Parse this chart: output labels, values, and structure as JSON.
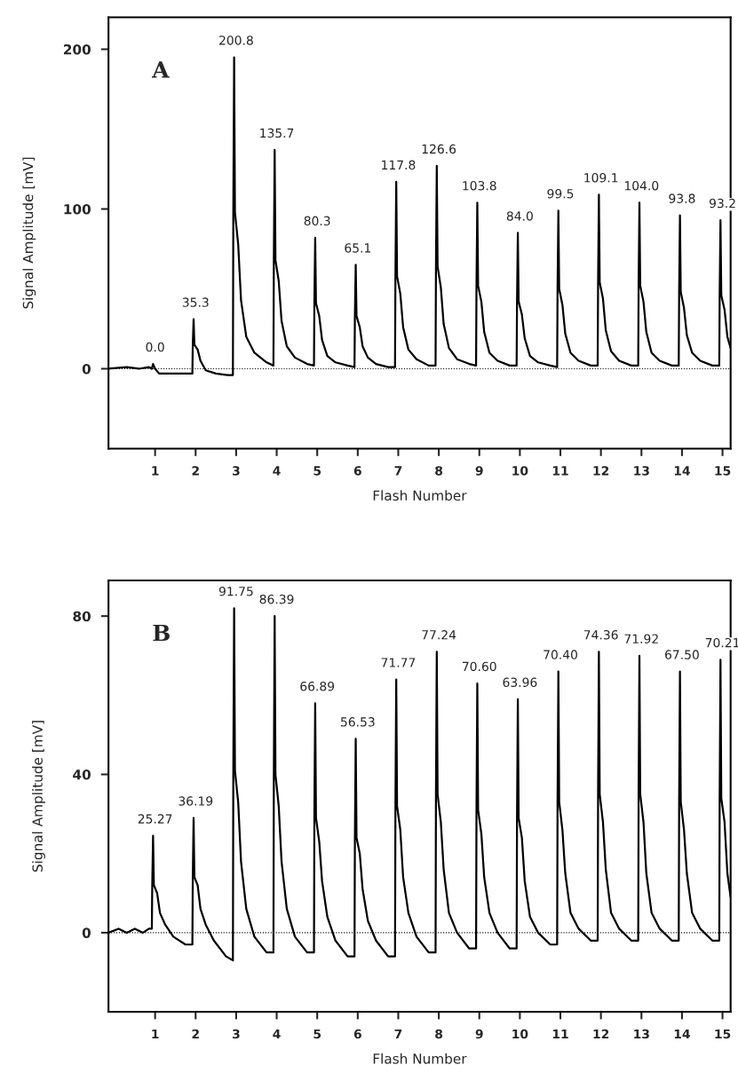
{
  "chart_data": [
    {
      "type": "line",
      "xlabel": "Flash Number",
      "ylabel": "Signal Amplitude [mV]",
      "xlim": [
        -0.15,
        15.2
      ],
      "xticks": [
        1,
        2,
        3,
        4,
        5,
        6,
        7,
        8,
        9,
        10,
        11,
        12,
        13,
        14,
        15
      ],
      "ylim": [
        -50,
        220
      ],
      "yticks": [
        0,
        100,
        200
      ],
      "grid": false,
      "marker": "none",
      "line_style": "solid",
      "ref_lines": [
        {
          "axis": "y",
          "value": 0,
          "line_style": "dotted",
          "color": "#000000"
        }
      ],
      "series": [
        {
          "color": "#000000",
          "x": [
            -0.15,
            0.3,
            0.6,
            0.85,
            0.92,
            0.95,
            1.0,
            1.1,
            1.5,
            1.92,
            1.93,
            1.95,
            1.97,
            2.05,
            2.12,
            2.25,
            2.5,
            2.8,
            2.92,
            2.93,
            2.95,
            2.97,
            3.05,
            3.12,
            3.25,
            3.45,
            3.75,
            3.92,
            3.93,
            3.95,
            3.97,
            4.05,
            4.12,
            4.25,
            4.45,
            4.75,
            4.92,
            4.93,
            4.95,
            4.97,
            5.05,
            5.12,
            5.25,
            5.45,
            5.75,
            5.92,
            5.93,
            5.95,
            5.97,
            6.05,
            6.12,
            6.25,
            6.45,
            6.75,
            6.92,
            6.93,
            6.95,
            6.97,
            7.05,
            7.12,
            7.25,
            7.45,
            7.75,
            7.92,
            7.93,
            7.95,
            7.97,
            8.05,
            8.12,
            8.25,
            8.45,
            8.75,
            8.92,
            8.93,
            8.95,
            8.97,
            9.05,
            9.12,
            9.25,
            9.45,
            9.75,
            9.92,
            9.93,
            9.95,
            9.97,
            10.05,
            10.12,
            10.25,
            10.45,
            10.75,
            10.92,
            10.93,
            10.95,
            10.97,
            11.05,
            11.12,
            11.25,
            11.45,
            11.75,
            11.92,
            11.93,
            11.95,
            11.97,
            12.05,
            12.12,
            12.25,
            12.45,
            12.75,
            12.92,
            12.93,
            12.95,
            12.97,
            13.05,
            13.12,
            13.25,
            13.45,
            13.75,
            13.92,
            13.93,
            13.95,
            13.97,
            14.05,
            14.12,
            14.25,
            14.45,
            14.75,
            14.92,
            14.93,
            14.95,
            14.97,
            15.05,
            15.12,
            15.2
          ],
          "values": [
            0,
            1,
            0,
            1,
            0,
            3,
            0,
            -3,
            -3,
            -3,
            15,
            31,
            15,
            12,
            5,
            -1,
            -3,
            -4,
            -4,
            98,
            195,
            98,
            78,
            43,
            20,
            10,
            4,
            2,
            68,
            137,
            68,
            55,
            30,
            14,
            7,
            3,
            2,
            41,
            82,
            41,
            33,
            18,
            8,
            4,
            2,
            1,
            33,
            65,
            33,
            26,
            14,
            7,
            3,
            1,
            1,
            58,
            117,
            58,
            47,
            26,
            12,
            6,
            2,
            2,
            64,
            127,
            64,
            51,
            28,
            13,
            6,
            3,
            2,
            52,
            104,
            52,
            42,
            23,
            10,
            5,
            2,
            2,
            42,
            85,
            42,
            34,
            19,
            8,
            4,
            2,
            1,
            50,
            99,
            50,
            40,
            22,
            10,
            5,
            2,
            2,
            54,
            109,
            54,
            44,
            24,
            11,
            5,
            2,
            2,
            52,
            104,
            52,
            42,
            23,
            10,
            5,
            2,
            2,
            48,
            96,
            48,
            38,
            21,
            10,
            5,
            2,
            2,
            46,
            93,
            46,
            37,
            20,
            13
          ]
        }
      ],
      "annotations": [
        "A",
        {
          "text": "0.0",
          "x": 1,
          "y": 3
        },
        {
          "text": "35.3",
          "x": 2,
          "y": 31
        },
        {
          "text": "200.8",
          "x": 3,
          "y": 195
        },
        {
          "text": "135.7",
          "x": 4,
          "y": 137
        },
        {
          "text": "80.3",
          "x": 5,
          "y": 82
        },
        {
          "text": "65.1",
          "x": 6,
          "y": 65
        },
        {
          "text": "117.8",
          "x": 7,
          "y": 117
        },
        {
          "text": "126.6",
          "x": 8,
          "y": 127
        },
        {
          "text": "103.8",
          "x": 9,
          "y": 104
        },
        {
          "text": "84.0",
          "x": 10,
          "y": 85
        },
        {
          "text": "99.5",
          "x": 11,
          "y": 99
        },
        {
          "text": "109.1",
          "x": 12,
          "y": 109
        },
        {
          "text": "104.0",
          "x": 13,
          "y": 104
        },
        {
          "text": "93.8",
          "x": 14,
          "y": 96
        },
        {
          "text": "93.2",
          "x": 15,
          "y": 93
        }
      ]
    },
    {
      "type": "line",
      "xlabel": "Flash Number",
      "ylabel": "Signal Amplitude [mV]",
      "xlim": [
        -0.15,
        15.2
      ],
      "xticks": [
        1,
        2,
        3,
        4,
        5,
        6,
        7,
        8,
        9,
        10,
        11,
        12,
        13,
        14,
        15
      ],
      "ylim": [
        -20,
        89
      ],
      "yticks": [
        0,
        40,
        80
      ],
      "grid": false,
      "marker": "none",
      "line_style": "solid",
      "ref_lines": [
        {
          "axis": "y",
          "value": 0,
          "line_style": "dotted",
          "color": "#000000"
        }
      ],
      "series": [
        {
          "color": "#000000",
          "x": [
            -0.15,
            0.1,
            0.3,
            0.5,
            0.7,
            0.85,
            0.92,
            0.93,
            0.95,
            0.97,
            1.05,
            1.12,
            1.25,
            1.45,
            1.75,
            1.92,
            1.93,
            1.95,
            1.97,
            2.05,
            2.12,
            2.25,
            2.45,
            2.75,
            2.92,
            2.93,
            2.95,
            2.97,
            3.05,
            3.12,
            3.25,
            3.45,
            3.75,
            3.92,
            3.93,
            3.95,
            3.97,
            4.05,
            4.12,
            4.25,
            4.45,
            4.75,
            4.92,
            4.93,
            4.95,
            4.97,
            5.05,
            5.12,
            5.25,
            5.45,
            5.75,
            5.92,
            5.93,
            5.95,
            5.97,
            6.05,
            6.12,
            6.25,
            6.45,
            6.75,
            6.92,
            6.93,
            6.95,
            6.97,
            7.05,
            7.12,
            7.25,
            7.45,
            7.75,
            7.92,
            7.93,
            7.95,
            7.97,
            8.05,
            8.12,
            8.25,
            8.45,
            8.75,
            8.92,
            8.93,
            8.95,
            8.97,
            9.05,
            9.12,
            9.25,
            9.45,
            9.75,
            9.92,
            9.93,
            9.95,
            9.97,
            10.05,
            10.12,
            10.25,
            10.45,
            10.75,
            10.92,
            10.93,
            10.95,
            10.97,
            11.05,
            11.12,
            11.25,
            11.45,
            11.75,
            11.92,
            11.93,
            11.95,
            11.97,
            12.05,
            12.12,
            12.25,
            12.45,
            12.75,
            12.92,
            12.93,
            12.95,
            12.97,
            13.05,
            13.12,
            13.25,
            13.45,
            13.75,
            13.92,
            13.93,
            13.95,
            13.97,
            14.05,
            14.12,
            14.25,
            14.45,
            14.75,
            14.92,
            14.93,
            14.95,
            14.97,
            15.05,
            15.12,
            15.2
          ],
          "values": [
            0,
            1,
            0,
            1,
            0,
            1,
            1,
            12,
            24.5,
            12,
            10,
            5,
            2,
            -1,
            -3,
            -3,
            14,
            29,
            14,
            12,
            6,
            2,
            -2,
            -6,
            -7,
            41,
            82,
            41,
            33,
            18,
            6,
            -1,
            -5,
            -5,
            40,
            80,
            40,
            32,
            18,
            6,
            -1,
            -5,
            -5,
            29,
            58,
            29,
            23,
            13,
            4,
            -2,
            -6,
            -6,
            24,
            49,
            24,
            20,
            11,
            3,
            -2,
            -6,
            -6,
            32,
            64,
            32,
            26,
            14,
            5,
            -1,
            -5,
            -5,
            35,
            71,
            35,
            28,
            16,
            5,
            0,
            -4,
            -4,
            31,
            63,
            31,
            25,
            14,
            5,
            0,
            -4,
            -4,
            29,
            59,
            29,
            24,
            13,
            4,
            0,
            -3,
            -3,
            33,
            66,
            33,
            26,
            15,
            5,
            1,
            -2,
            -2,
            35,
            71,
            35,
            28,
            16,
            5,
            1,
            -2,
            -2,
            35,
            70,
            35,
            28,
            15,
            5,
            1,
            -2,
            -2,
            33,
            66,
            33,
            26,
            15,
            5,
            1,
            -2,
            -2,
            34,
            69,
            34,
            28,
            15,
            9
          ]
        }
      ],
      "annotations": [
        "B",
        {
          "text": "25.27",
          "x": 1,
          "y": 24.5
        },
        {
          "text": "36.19",
          "x": 2,
          "y": 29
        },
        {
          "text": "91.75",
          "x": 3,
          "y": 82
        },
        {
          "text": "86.39",
          "x": 4,
          "y": 80
        },
        {
          "text": "66.89",
          "x": 5,
          "y": 58
        },
        {
          "text": "56.53",
          "x": 6,
          "y": 49
        },
        {
          "text": "71.77",
          "x": 7,
          "y": 64
        },
        {
          "text": "77.24",
          "x": 8,
          "y": 71
        },
        {
          "text": "70.60",
          "x": 9,
          "y": 63
        },
        {
          "text": "63.96",
          "x": 10,
          "y": 59
        },
        {
          "text": "70.40",
          "x": 11,
          "y": 66
        },
        {
          "text": "74.36",
          "x": 12,
          "y": 71
        },
        {
          "text": "71.92",
          "x": 13,
          "y": 70
        },
        {
          "text": "67.50",
          "x": 14,
          "y": 66
        },
        {
          "text": "70.21",
          "x": 15,
          "y": 69
        }
      ]
    }
  ]
}
